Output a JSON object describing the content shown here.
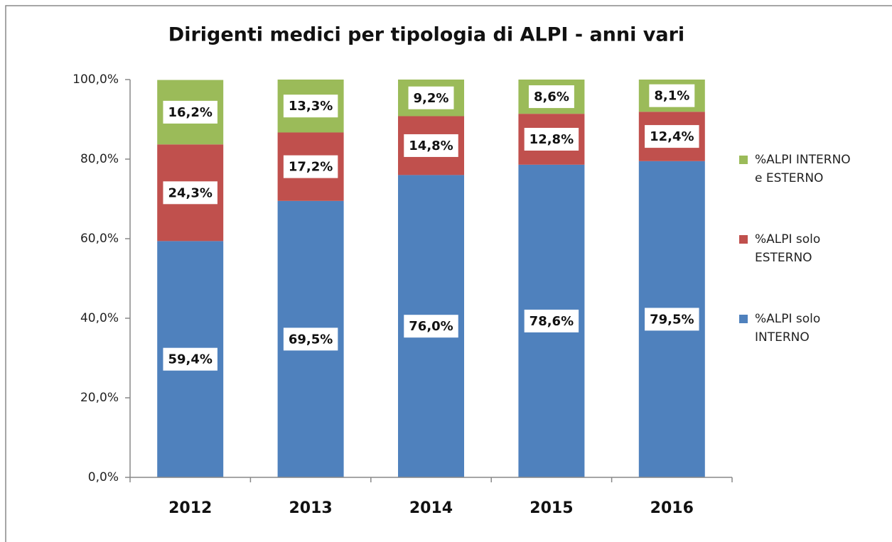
{
  "chart_data": {
    "type": "stacked_bar",
    "title": "Dirigenti medici per tipologia di ALPI - anni vari",
    "categories": [
      "2012",
      "2013",
      "2014",
      "2015",
      "2016"
    ],
    "series": [
      {
        "name": "%ALPI solo INTERNO",
        "color": "#4f81bd",
        "values": [
          59.4,
          69.5,
          76.0,
          78.6,
          79.5
        ],
        "value_labels": [
          "59,4%",
          "69,5%",
          "76,0%",
          "78,6%",
          "79,5%"
        ]
      },
      {
        "name": "%ALPI solo ESTERNO",
        "color": "#c0504d",
        "values": [
          24.3,
          17.2,
          14.8,
          12.8,
          12.4
        ],
        "value_labels": [
          "24,3%",
          "17,2%",
          "14,8%",
          "12,8%",
          "12,4%"
        ]
      },
      {
        "name": "%ALPI INTERNO e ESTERNO",
        "color": "#9bbb59",
        "values": [
          16.2,
          13.3,
          9.2,
          8.6,
          8.1
        ],
        "value_labels": [
          "16,2%",
          "13,3%",
          "9,2%",
          "8,6%",
          "8,1%"
        ]
      }
    ],
    "ylim": [
      0,
      100
    ],
    "yticks": [
      {
        "value": 0,
        "label": "0,0%"
      },
      {
        "value": 20,
        "label": "20,0%"
      },
      {
        "value": 40,
        "label": "40,0%"
      },
      {
        "value": 60,
        "label": "60,0%"
      },
      {
        "value": 80,
        "label": "80,0%"
      },
      {
        "value": 100,
        "label": "100,0%"
      }
    ],
    "legend": "right"
  }
}
